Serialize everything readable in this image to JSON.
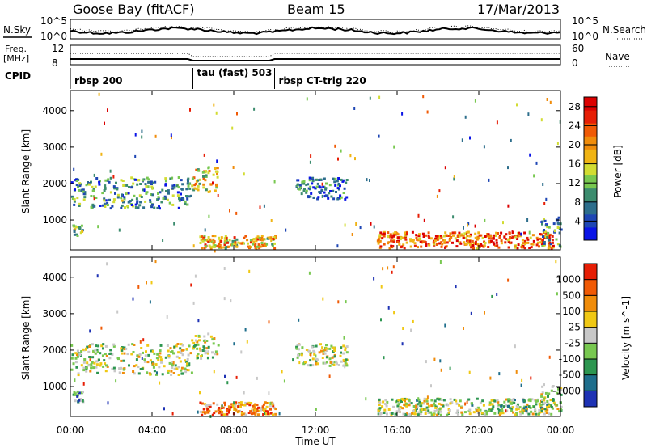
{
  "header": {
    "station": "Goose Bay (fitACF)",
    "beam": "Beam 15",
    "date": "17/Mar/2013"
  },
  "top_panel": {
    "left_label": "N.Sky",
    "left_ticks": [
      "10^5",
      "10^0"
    ],
    "right_label": "N.Search",
    "right_ticks": [
      "10^5",
      "10^0"
    ]
  },
  "freq_panel": {
    "left_label_1": "Freq.",
    "left_label_2": "[MHz]",
    "left_ticks": [
      "12",
      "8"
    ],
    "right_label": "Nave",
    "right_ticks": [
      "60",
      "0"
    ]
  },
  "cpid": {
    "label": "CPID",
    "segments": [
      {
        "name": "rbsp 200",
        "start_hour": 0,
        "end_hour": 6
      },
      {
        "name": "tau (fast) 503",
        "start_hour": 6,
        "end_hour": 10
      },
      {
        "name": "rbsp CT-trig 220",
        "start_hour": 10,
        "end_hour": 24
      }
    ]
  },
  "x_axis": {
    "label": "Time UT",
    "ticks": [
      "00:00",
      "04:00",
      "08:00",
      "12:00",
      "16:00",
      "20:00",
      "00:00"
    ]
  },
  "chart_data": [
    {
      "type": "heatmap",
      "x_range_hours": [
        0,
        24
      ],
      "ylabel": "Slant Range [km]",
      "y_ticks": [
        1000,
        2000,
        3000,
        4000
      ],
      "ylim": [
        180,
        4550
      ],
      "colorbar": {
        "label": "Power [dB]",
        "ticks": [
          4,
          8,
          12,
          16,
          20,
          24,
          28
        ],
        "range": [
          0,
          30
        ],
        "colors": [
          "#0a14e6",
          "#1e46b4",
          "#2d6e8c",
          "#3c8c6e",
          "#78c850",
          "#d2dc32",
          "#f0b414",
          "#f08c0a",
          "#f05a05",
          "#e61e05",
          "#dc0000"
        ]
      },
      "regions": [
        {
          "t0": 0.0,
          "t1": 5.9,
          "r0": 1350,
          "r1": 2200,
          "level": 0.3
        },
        {
          "t0": 0.1,
          "t1": 0.6,
          "r0": 600,
          "r1": 900,
          "level": 0.4
        },
        {
          "t0": 5.9,
          "t1": 7.2,
          "r0": 1800,
          "r1": 2500,
          "level": 0.55
        },
        {
          "t0": 6.3,
          "t1": 10.0,
          "r0": 250,
          "r1": 600,
          "level": 0.6
        },
        {
          "t0": 11.0,
          "t1": 13.5,
          "r0": 1600,
          "r1": 2200,
          "level": 0.2
        },
        {
          "t0": 15.0,
          "t1": 23.6,
          "r0": 250,
          "r1": 700,
          "level": 0.75
        },
        {
          "t0": 23.0,
          "t1": 24.0,
          "r0": 300,
          "r1": 1100,
          "level": 0.3
        }
      ]
    },
    {
      "type": "heatmap",
      "x_range_hours": [
        0,
        24
      ],
      "ylabel": "Slant Range [km]",
      "y_ticks": [
        1000,
        2000,
        3000,
        4000
      ],
      "ylim": [
        180,
        4550
      ],
      "colorbar": {
        "label": "Velocity [m s^-1]",
        "ticks": [
          1000,
          500,
          100,
          25,
          -25,
          -100,
          -500,
          -1000
        ],
        "colors": [
          "#1e32b4",
          "#1e6e8c",
          "#2d9650",
          "#78c850",
          "#c8c8c8",
          "#f0c814",
          "#f08c0a",
          "#f05a05",
          "#e61e05"
        ]
      },
      "regions": [
        {
          "t0": 0.0,
          "t1": 5.9,
          "r0": 1350,
          "r1": 2200,
          "level": 0.5
        },
        {
          "t0": 0.1,
          "t1": 0.6,
          "r0": 600,
          "r1": 900,
          "level": 0.3
        },
        {
          "t0": 5.9,
          "t1": 7.2,
          "r0": 1800,
          "r1": 2500,
          "level": 0.5
        },
        {
          "t0": 6.3,
          "t1": 10.0,
          "r0": 250,
          "r1": 600,
          "level": 0.75
        },
        {
          "t0": 11.0,
          "t1": 13.5,
          "r0": 1600,
          "r1": 2200,
          "level": 0.5
        },
        {
          "t0": 15.0,
          "t1": 23.6,
          "r0": 250,
          "r1": 700,
          "level": 0.45
        },
        {
          "t0": 23.0,
          "t1": 24.0,
          "r0": 300,
          "r1": 1100,
          "level": 0.5
        }
      ]
    }
  ]
}
